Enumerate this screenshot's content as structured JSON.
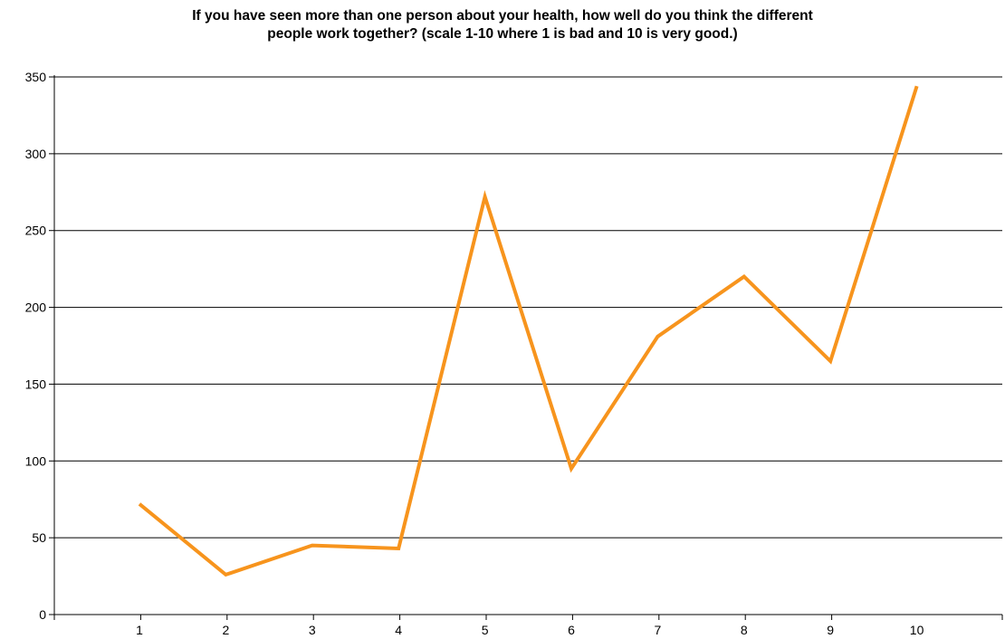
{
  "chart_data": {
    "type": "line",
    "title_lines": [
      "If you have seen more than one person about your health, how well do you think the different",
      "people work together? (scale 1-10 where 1 is bad and 10 is very good.)"
    ],
    "xlabel": "",
    "ylabel": "",
    "categories": [
      "1",
      "2",
      "3",
      "4",
      "5",
      "6",
      "7",
      "8",
      "9",
      "10"
    ],
    "series": [
      {
        "values": [
          72,
          26,
          45,
          43,
          272,
          95,
          181,
          220,
          165,
          344
        ],
        "color": "#f7941d"
      }
    ],
    "ylim": [
      0,
      350
    ],
    "yticks": [
      0,
      50,
      100,
      150,
      200,
      250,
      300,
      350
    ],
    "grid": true,
    "legend": "none"
  }
}
